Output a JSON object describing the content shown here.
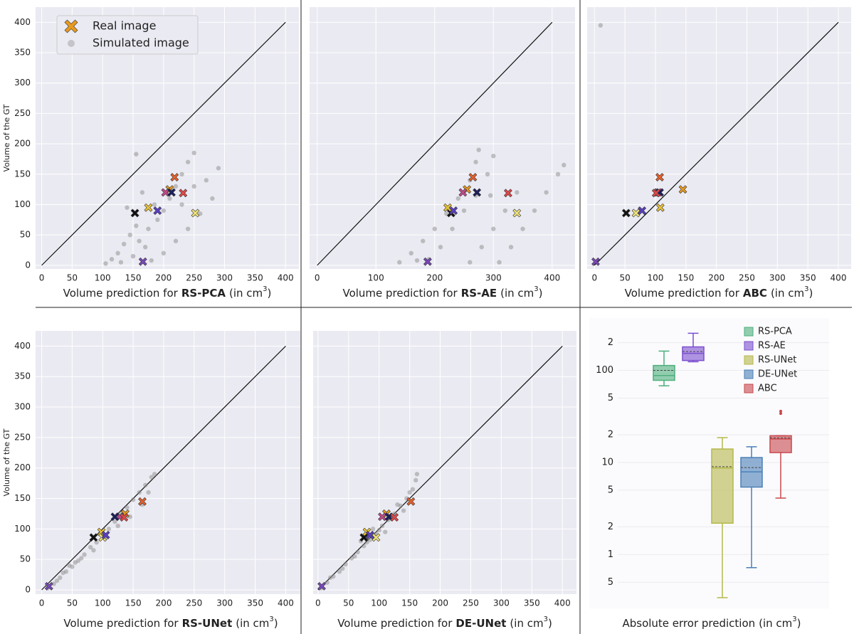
{
  "chart_data": [
    {
      "type": "scatter",
      "ylabel": "Volume of the GT",
      "xlabel": {
        "text": "Volume prediction for",
        "method": "RS-PCA",
        "unit": "(in cm",
        "power": "3",
        "close": ")"
      },
      "xlim": [
        -10,
        422
      ],
      "ylim": [
        -6,
        425
      ],
      "xticks": [
        0,
        50,
        100,
        150,
        200,
        250,
        300,
        350,
        400
      ],
      "yticks": [
        0,
        50,
        100,
        150,
        200,
        250,
        300,
        350,
        400
      ],
      "ytick_labels": true,
      "grid": true,
      "identity": [
        0,
        400
      ],
      "legend": "upper left",
      "series": [
        {
          "name": "Simulated image",
          "color": "#8c8c8c",
          "marker": "dot",
          "x": [
            105,
            115,
            125,
            135,
            145,
            155,
            130,
            150,
            170,
            160,
            175,
            190,
            200,
            210,
            220,
            230,
            240,
            250,
            180,
            200,
            220,
            240,
            260,
            280,
            290,
            270,
            155,
            165,
            185,
            250,
            230,
            140
          ],
          "values": [
            3,
            10,
            20,
            35,
            50,
            65,
            5,
            15,
            30,
            40,
            60,
            75,
            90,
            110,
            130,
            150,
            170,
            185,
            8,
            20,
            40,
            60,
            85,
            110,
            160,
            140,
            183,
            120,
            100,
            130,
            100,
            95
          ]
        },
        {
          "name": "Real image",
          "color": "#e89a1e",
          "marker": "x",
          "colors": [
            "#e6602a",
            "#e89a1e",
            "#c04a8a",
            "#1c1f5c",
            "#e04848",
            "#111111",
            "#e8c23a",
            "#efe27a",
            "#5a3fc0",
            "#7848b8"
          ],
          "x": [
            218,
            210,
            203,
            213,
            232,
            153,
            175,
            252,
            190,
            166
          ],
          "values": [
            145,
            125,
            120,
            120,
            119,
            86,
            95,
            86,
            90,
            6
          ]
        }
      ]
    },
    {
      "type": "scatter",
      "xlabel": {
        "text": "Volume prediction for",
        "method": "RS-AE",
        "unit": "(in cm",
        "power": "3",
        "close": ")"
      },
      "xlim": [
        -13,
        439
      ],
      "ylim": [
        -6,
        425
      ],
      "xticks": [
        0,
        100,
        200,
        300,
        400
      ],
      "yticks": [
        0,
        50,
        100,
        150,
        200,
        250,
        300,
        350,
        400
      ],
      "ytick_labels": false,
      "grid": true,
      "identity": [
        0,
        400
      ],
      "series": [
        {
          "color": "#8c8c8c",
          "marker": "dot",
          "x": [
            140,
            160,
            180,
            200,
            220,
            240,
            260,
            270,
            275,
            190,
            210,
            230,
            250,
            270,
            290,
            260,
            280,
            300,
            320,
            340,
            310,
            330,
            350,
            370,
            390,
            410,
            420,
            170,
            300,
            295
          ],
          "values": [
            5,
            20,
            40,
            60,
            85,
            110,
            140,
            170,
            190,
            10,
            30,
            60,
            90,
            115,
            150,
            5,
            30,
            60,
            90,
            120,
            5,
            30,
            60,
            90,
            120,
            150,
            165,
            8,
            180,
            115
          ]
        },
        {
          "marker": "x",
          "colors": [
            "#e6602a",
            "#e89a1e",
            "#c04a8a",
            "#1c1f5c",
            "#e04848",
            "#111111",
            "#e8c23a",
            "#efe27a",
            "#5a3fc0",
            "#7848b8"
          ],
          "x": [
            265,
            255,
            248,
            272,
            325,
            228,
            222,
            340,
            232,
            188
          ],
          "values": [
            145,
            125,
            120,
            120,
            119,
            86,
            95,
            86,
            90,
            6
          ]
        }
      ]
    },
    {
      "type": "scatter",
      "xlabel": {
        "text": "Volume prediction for",
        "method": "ABC",
        "unit": "(in cm",
        "power": "3",
        "close": ")"
      },
      "xlim": [
        -12,
        421
      ],
      "ylim": [
        -6,
        425
      ],
      "xticks": [
        0,
        50,
        100,
        150,
        200,
        250,
        300,
        350,
        400
      ],
      "yticks": [
        0,
        50,
        100,
        150,
        200,
        250,
        300,
        350,
        400
      ],
      "ytick_labels": false,
      "grid": true,
      "identity": [
        0,
        400
      ],
      "series": [
        {
          "color": "#8c8c8c",
          "marker": "dot",
          "x": [
            10
          ],
          "values": [
            395
          ]
        },
        {
          "marker": "x",
          "colors": [
            "#e6602a",
            "#e89a1e",
            "#c04a8a",
            "#1c1f5c",
            "#e04848",
            "#111111",
            "#e8c23a",
            "#efe27a",
            "#5a3fc0",
            "#7848b8"
          ],
          "x": [
            107,
            145,
            104,
            107,
            101,
            52,
            108,
            68,
            78,
            2
          ],
          "values": [
            145,
            125,
            120,
            120,
            119,
            86,
            95,
            86,
            90,
            6
          ]
        }
      ]
    },
    {
      "type": "scatter",
      "ylabel": "Volume of the GT",
      "xlabel": {
        "text": "Volume prediction for",
        "method": "RS-UNet",
        "unit": "(in cm",
        "power": "3",
        "close": ")"
      },
      "xlim": [
        -10,
        424
      ],
      "ylim": [
        -7,
        425
      ],
      "xticks": [
        0,
        50,
        100,
        150,
        200,
        250,
        300,
        350,
        400
      ],
      "yticks": [
        0,
        50,
        100,
        150,
        200,
        250,
        300,
        350,
        400
      ],
      "ytick_labels": true,
      "grid": true,
      "identity": [
        0,
        400
      ],
      "series": [
        {
          "color": "#8c8c8c",
          "marker": "dot",
          "x": [
            10,
            20,
            30,
            40,
            50,
            60,
            70,
            80,
            90,
            100,
            110,
            120,
            130,
            140,
            150,
            160,
            170,
            180,
            185,
            25,
            45,
            65,
            85,
            105,
            125,
            145,
            165,
            175,
            35,
            55
          ],
          "values": [
            3,
            10,
            20,
            30,
            38,
            48,
            58,
            70,
            78,
            90,
            100,
            112,
            125,
            135,
            148,
            160,
            172,
            185,
            190,
            15,
            40,
            52,
            65,
            85,
            105,
            120,
            140,
            160,
            28,
            45
          ]
        },
        {
          "marker": "x",
          "colors": [
            "#e6602a",
            "#e89a1e",
            "#c04a8a",
            "#1c1f5c",
            "#e04848",
            "#111111",
            "#e8c23a",
            "#efe27a",
            "#5a3fc0",
            "#7848b8"
          ],
          "x": [
            165,
            137,
            128,
            120,
            135,
            85,
            98,
            100,
            105,
            12
          ],
          "values": [
            145,
            125,
            120,
            120,
            119,
            86,
            95,
            86,
            90,
            6
          ]
        }
      ]
    },
    {
      "type": "scatter",
      "xlabel": {
        "text": "Volume prediction for",
        "method": "DE-UNet",
        "unit": "(in cm",
        "power": "3",
        "close": ")"
      },
      "xlim": [
        -8,
        423
      ],
      "ylim": [
        -7,
        425
      ],
      "xticks": [
        0,
        50,
        100,
        150,
        200,
        250,
        300,
        350,
        400
      ],
      "yticks": [
        0,
        50,
        100,
        150,
        200,
        250,
        300,
        350,
        400
      ],
      "ytick_labels": false,
      "grid": true,
      "identity": [
        0,
        400
      ],
      "series": [
        {
          "color": "#8c8c8c",
          "marker": "dot",
          "x": [
            5,
            15,
            25,
            35,
            45,
            55,
            65,
            75,
            85,
            95,
            105,
            115,
            125,
            135,
            145,
            155,
            160,
            162,
            20,
            40,
            60,
            80,
            100,
            120,
            140,
            110,
            90,
            70,
            130,
            150
          ],
          "values": [
            3,
            12,
            22,
            30,
            42,
            52,
            62,
            72,
            82,
            92,
            105,
            115,
            125,
            138,
            150,
            165,
            180,
            190,
            20,
            35,
            55,
            78,
            98,
            118,
            130,
            95,
            100,
            80,
            140,
            160
          ]
        },
        {
          "marker": "x",
          "colors": [
            "#e6602a",
            "#e89a1e",
            "#c04a8a",
            "#1c1f5c",
            "#e04848",
            "#111111",
            "#e8c23a",
            "#efe27a",
            "#5a3fc0",
            "#7848b8"
          ],
          "x": [
            152,
            112,
            105,
            116,
            125,
            75,
            80,
            95,
            85,
            6
          ],
          "values": [
            145,
            125,
            120,
            120,
            119,
            86,
            95,
            86,
            90,
            6
          ]
        }
      ]
    },
    {
      "type": "box",
      "log_y": true,
      "legend": "upper right",
      "xlabel": {
        "text": "Absolute error prediction",
        "unit": "(in cm",
        "power": "3",
        "close": ")"
      },
      "ylim": [
        0.26,
        370
      ],
      "yticks": [
        {
          "value": 0.5,
          "label": "5"
        },
        1,
        {
          "value": 2,
          "label": "2"
        },
        {
          "value": 5,
          "label": "5"
        },
        10,
        {
          "value": 20,
          "label": "2"
        },
        {
          "value": 50,
          "label": "5"
        },
        100,
        {
          "value": 200,
          "label": "2"
        }
      ],
      "series": [
        {
          "name": "RS-PCA",
          "color": "#4daf7c",
          "whislo": 68,
          "q1": 78,
          "med": 88,
          "mean": 100,
          "q3": 113,
          "whishi": 162,
          "fliers": []
        },
        {
          "name": "RS-AE",
          "color": "#7b4fd0",
          "whislo": 124,
          "q1": 128,
          "med": 153,
          "mean": 160,
          "q3": 180,
          "whishi": 253,
          "fliers": []
        },
        {
          "name": "RS-UNet",
          "color": "#b5b84a",
          "whislo": 0.34,
          "q1": 2.19,
          "med": 8.7,
          "mean": 9,
          "q3": 14,
          "whishi": 18.6,
          "fliers": []
        },
        {
          "name": "DE-UNet",
          "color": "#4a7fb8",
          "whislo": 0.72,
          "q1": 5.4,
          "med": 7.9,
          "mean": 8.8,
          "q3": 11.3,
          "whishi": 14.8,
          "fliers": []
        },
        {
          "name": "ABC",
          "color": "#c8484c",
          "whislo": 4.1,
          "q1": 12.8,
          "med": 18,
          "mean": 18.5,
          "q3": 19.5,
          "whishi": 19.5,
          "fliers": [
            34,
            36
          ]
        }
      ]
    }
  ]
}
